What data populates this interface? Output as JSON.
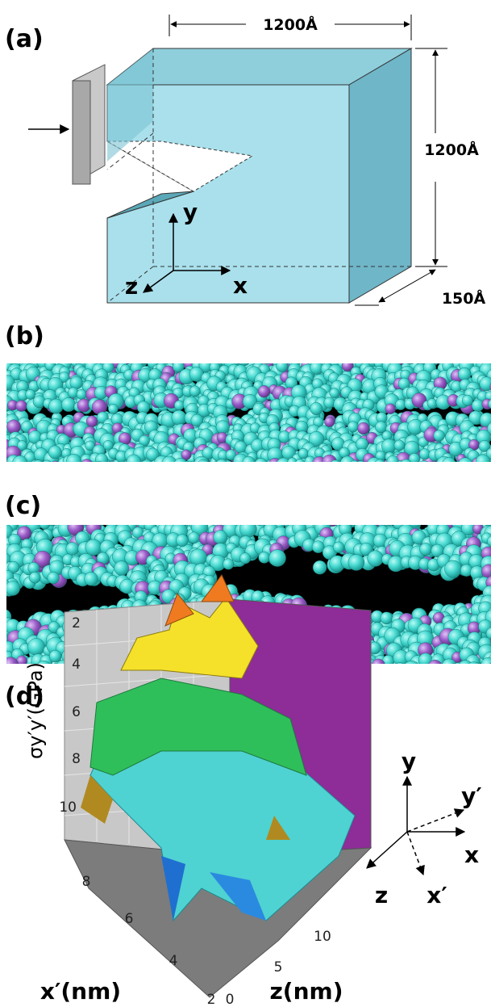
{
  "panels": {
    "a": {
      "label": "(a)",
      "width": "1200Å",
      "height": "1200Å",
      "depth": "150Å",
      "axis_y": "y",
      "axis_z": "z",
      "axis_x": "x"
    },
    "b": {
      "label": "(b)"
    },
    "c": {
      "label": "(c)"
    },
    "d": {
      "label": "(d)",
      "y_axis_label": "σy′y′(GPa)",
      "y_ticks": [
        "2",
        "4",
        "6",
        "8",
        "10"
      ],
      "x_axis_label": "x′(nm)",
      "x_ticks": [
        "8",
        "6",
        "4",
        "2"
      ],
      "z_axis_label": "z(nm)",
      "z_ticks": [
        "0",
        "5",
        "10"
      ],
      "triad": {
        "y": "y",
        "y_prime": "y′",
        "x": "x",
        "z": "z",
        "x_prime": "x′"
      }
    }
  }
}
